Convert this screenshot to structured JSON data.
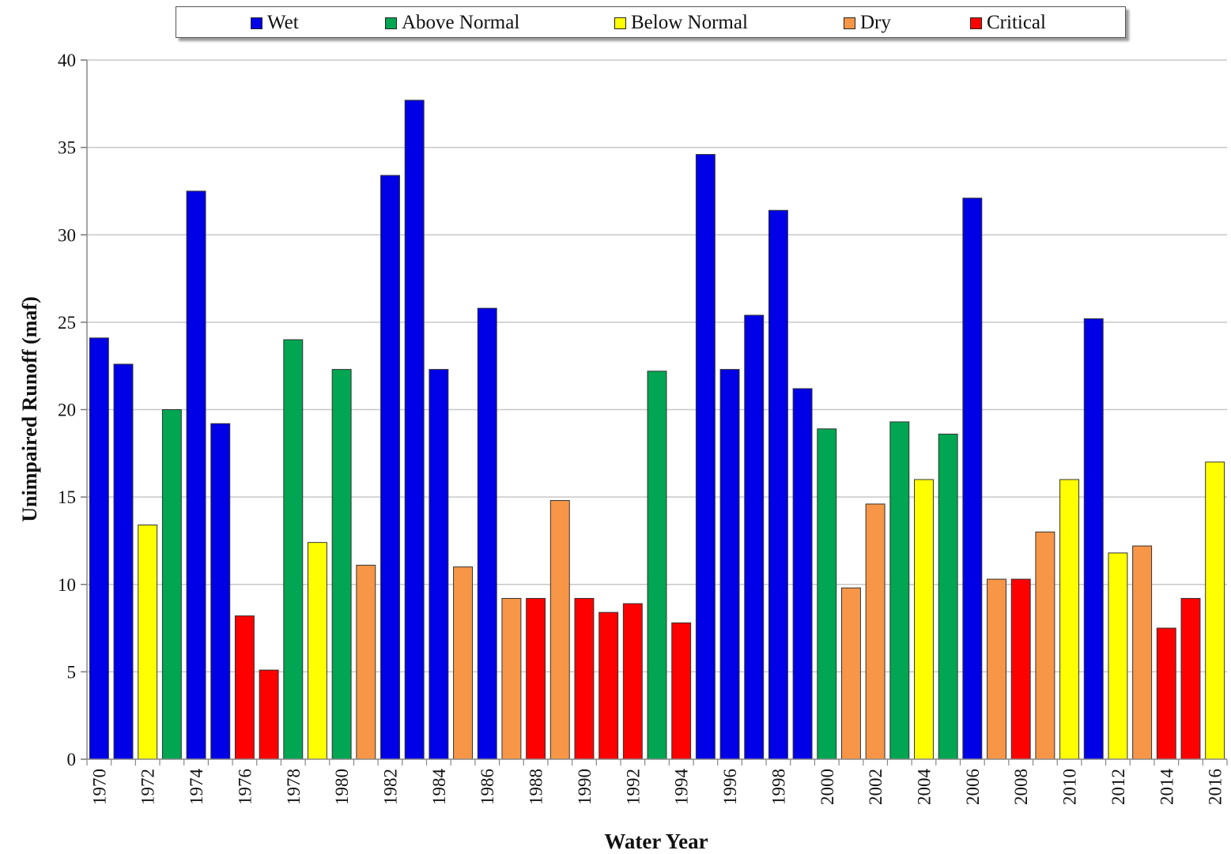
{
  "chart_data": {
    "type": "bar",
    "title": "",
    "xlabel": "Water Year",
    "ylabel": "Unimpaired Runoff (maf)",
    "ylim": [
      0,
      40
    ],
    "yticks": [
      0,
      5,
      10,
      15,
      20,
      25,
      30,
      35,
      40
    ],
    "grid": true,
    "legend_position": "top",
    "legend": [
      {
        "name": "Wet",
        "color": "#0000e6"
      },
      {
        "name": "Above Normal",
        "color": "#00a651"
      },
      {
        "name": "Below Normal",
        "color": "#ffff00"
      },
      {
        "name": "Dry",
        "color": "#f79646"
      },
      {
        "name": "Critical",
        "color": "#ff0000"
      }
    ],
    "categories": [
      1970,
      1971,
      1972,
      1973,
      1974,
      1975,
      1976,
      1977,
      1978,
      1979,
      1980,
      1981,
      1982,
      1983,
      1984,
      1985,
      1986,
      1987,
      1988,
      1989,
      1990,
      1991,
      1992,
      1993,
      1994,
      1995,
      1996,
      1997,
      1998,
      1999,
      2000,
      2001,
      2002,
      2003,
      2004,
      2005,
      2006,
      2007,
      2008,
      2009,
      2010,
      2011,
      2012,
      2013,
      2014,
      2015,
      2016
    ],
    "tick_labels": [
      "1970",
      "1972",
      "1974",
      "1976",
      "1978",
      "1980",
      "1982",
      "1984",
      "1986",
      "1988",
      "1990",
      "1992",
      "1994",
      "1996",
      "1998",
      "2000",
      "2002",
      "2004",
      "2006",
      "2008",
      "2010",
      "2012",
      "2014",
      "2016"
    ],
    "values": [
      24.1,
      22.6,
      13.4,
      20.0,
      32.5,
      19.2,
      8.2,
      5.1,
      24.0,
      12.4,
      22.3,
      11.1,
      33.4,
      37.7,
      22.3,
      11.0,
      25.8,
      9.2,
      9.2,
      14.8,
      9.2,
      8.4,
      8.9,
      22.2,
      7.8,
      34.6,
      22.3,
      25.4,
      31.4,
      21.2,
      18.9,
      9.8,
      14.6,
      19.3,
      16.0,
      18.6,
      32.1,
      10.3,
      10.3,
      13.0,
      16.0,
      25.2,
      11.8,
      12.2,
      7.5,
      9.2,
      17.0
    ],
    "classes": [
      "Wet",
      "Wet",
      "Below Normal",
      "Above Normal",
      "Wet",
      "Wet",
      "Critical",
      "Critical",
      "Above Normal",
      "Below Normal",
      "Above Normal",
      "Dry",
      "Wet",
      "Wet",
      "Wet",
      "Dry",
      "Wet",
      "Dry",
      "Critical",
      "Dry",
      "Critical",
      "Critical",
      "Critical",
      "Above Normal",
      "Critical",
      "Wet",
      "Wet",
      "Wet",
      "Wet",
      "Wet",
      "Above Normal",
      "Dry",
      "Dry",
      "Above Normal",
      "Below Normal",
      "Above Normal",
      "Wet",
      "Dry",
      "Critical",
      "Dry",
      "Below Normal",
      "Wet",
      "Below Normal",
      "Dry",
      "Critical",
      "Critical",
      "Below Normal"
    ]
  }
}
